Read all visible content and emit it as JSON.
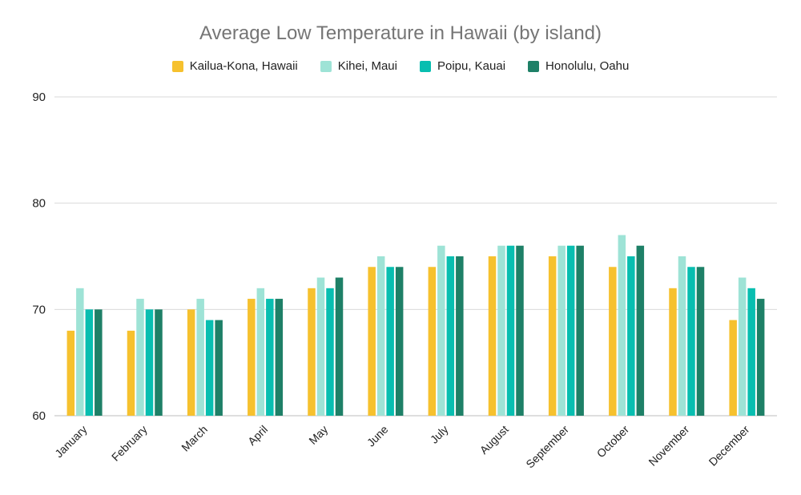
{
  "chart_data": {
    "type": "bar",
    "title": "Average Low Temperature in Hawaii (by island)",
    "xlabel": "",
    "ylabel": "",
    "ylim": [
      60,
      90
    ],
    "yticks": [
      60,
      70,
      80,
      90
    ],
    "grid": true,
    "legend_position": "top",
    "categories": [
      "January",
      "February",
      "March",
      "April",
      "May",
      "June",
      "July",
      "August",
      "September",
      "October",
      "November",
      "December"
    ],
    "series": [
      {
        "name": "Kailua-Kona, Hawaii",
        "color": "#F6C12E",
        "values": [
          68,
          68,
          70,
          71,
          72,
          74,
          74,
          75,
          75,
          74,
          72,
          69
        ]
      },
      {
        "name": "Kihei, Maui",
        "color": "#9EE3D6",
        "values": [
          72,
          71,
          71,
          72,
          73,
          75,
          76,
          76,
          76,
          77,
          75,
          73
        ]
      },
      {
        "name": "Poipu, Kauai",
        "color": "#08BEB0",
        "values": [
          70,
          70,
          69,
          71,
          72,
          74,
          75,
          76,
          76,
          75,
          74,
          72
        ]
      },
      {
        "name": "Honolulu, Oahu",
        "color": "#1E8067",
        "values": [
          70,
          70,
          69,
          71,
          73,
          74,
          75,
          76,
          76,
          76,
          74,
          71
        ]
      }
    ]
  }
}
